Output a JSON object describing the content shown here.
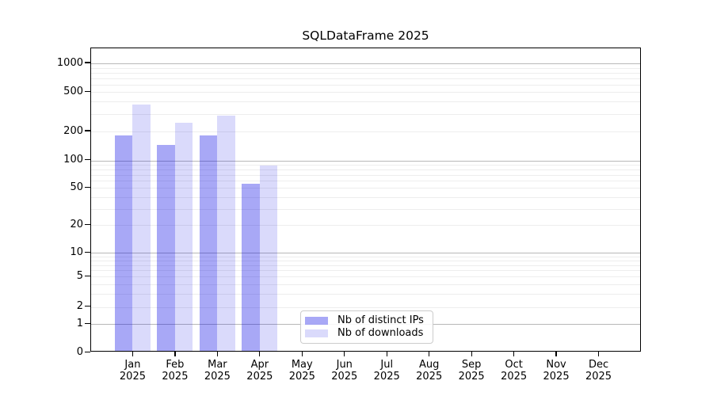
{
  "chart_data": {
    "type": "bar",
    "title": "SQLDataFrame 2025",
    "xlabel": "",
    "ylabel": "",
    "y_scale": "symlog",
    "y_ticks": [
      0,
      1,
      2,
      5,
      10,
      20,
      50,
      100,
      200,
      500,
      1000
    ],
    "ylim": [
      0,
      1450
    ],
    "grid": "horizontal, log minor + major",
    "legend_position": "inside lower center",
    "months": [
      "Jan",
      "Feb",
      "Mar",
      "Apr",
      "May",
      "Jun",
      "Jul",
      "Aug",
      "Sep",
      "Oct",
      "Nov",
      "Dec"
    ],
    "year_label": "2025",
    "series": [
      {
        "name": "Nb of distinct IPs",
        "color": "rgba(0,0,230,0.34)",
        "values": [
          175,
          140,
          175,
          53,
          null,
          null,
          null,
          null,
          null,
          null,
          null,
          null
        ]
      },
      {
        "name": "Nb of downloads",
        "color": "rgba(0,0,230,0.145)",
        "values": [
          360,
          235,
          275,
          85,
          null,
          null,
          null,
          null,
          null,
          null,
          null,
          null
        ]
      }
    ],
    "colors": {
      "major_grid": "#b8b8b8",
      "minor_grid": "#ededed",
      "axis": "#000000",
      "legend_border": "#cccccc"
    }
  }
}
